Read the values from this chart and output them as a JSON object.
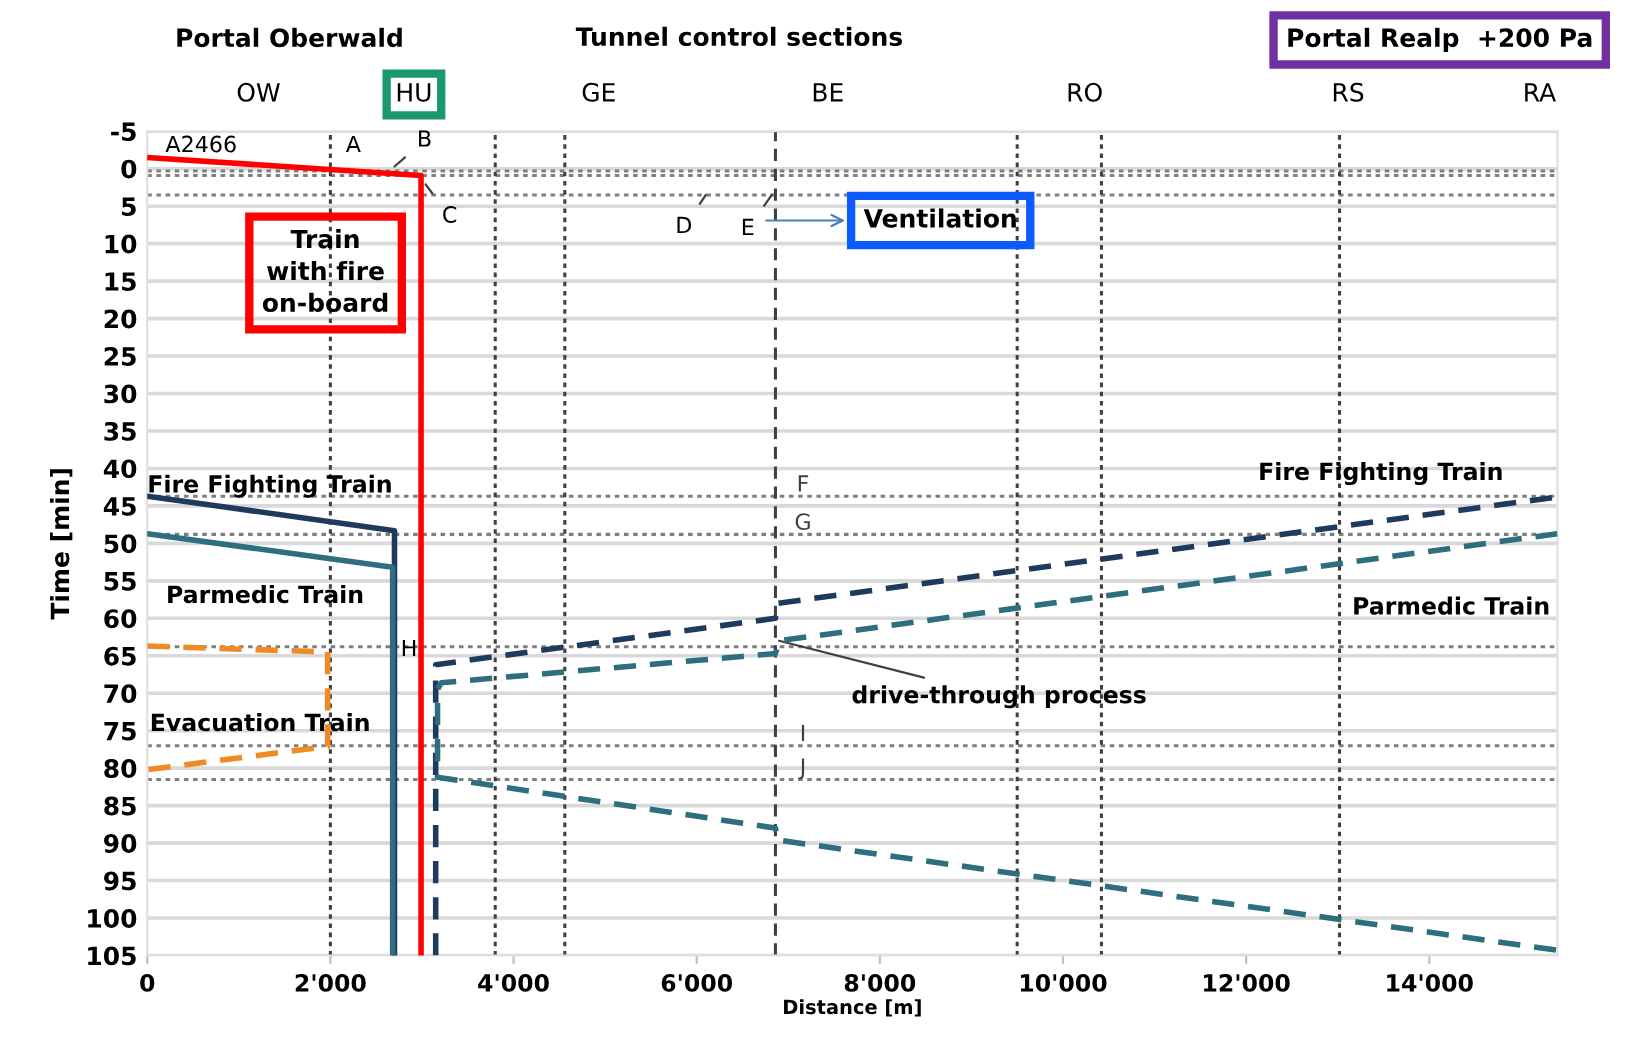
{
  "chart_data": {
    "type": "line",
    "title": "Tunnel control sections",
    "xlabel": "Distance [m]",
    "ylabel": "Time [min]",
    "xlim": [
      0,
      15400
    ],
    "ylim": [
      105,
      -5
    ],
    "xticks": [
      0,
      {
        "value": 2000,
        "label": "2'000"
      },
      {
        "value": 4000,
        "label": "4'000"
      },
      {
        "value": 6000,
        "label": "6'000"
      },
      {
        "value": 8000,
        "label": "8'000"
      },
      {
        "value": 10000,
        "label": "10'000"
      },
      {
        "value": 12000,
        "label": "12'000"
      },
      {
        "value": 14000,
        "label": "14'000"
      }
    ],
    "yticks": [
      -5,
      0,
      5,
      10,
      15,
      20,
      25,
      30,
      35,
      40,
      45,
      50,
      55,
      60,
      65,
      70,
      75,
      80,
      85,
      90,
      95,
      100,
      105
    ],
    "grid": "y",
    "series": [
      {
        "color": "#ff0000",
        "line_style": "solid",
        "x": [
          0,
          2990,
          2990
        ],
        "values": [
          -1.5,
          0.9,
          105
        ]
      },
      {
        "color": "#1f3a5f",
        "line_style": "solid",
        "x": [
          0,
          2700,
          2700
        ],
        "values": [
          43.7,
          48.3,
          105
        ]
      },
      {
        "color": "#2e6e7e",
        "line_style": "solid",
        "x": [
          0,
          2680,
          2680
        ],
        "values": [
          48.7,
          53.2,
          105
        ]
      },
      {
        "color": "#1f3a5f",
        "line_style": "dashed",
        "x": [
          3150,
          3150,
          6860,
          6880,
          15400
        ],
        "values": [
          105,
          66.2,
          60.0,
          58.0,
          43.8
        ]
      },
      {
        "color": "#2e6e7e",
        "line_style": "dashed",
        "x": [
          15400,
          6900,
          6860,
          3210,
          3170,
          3170,
          6860,
          6890,
          15400
        ],
        "values": [
          48.7,
          63.0,
          64.7,
          68.6,
          69.5,
          81.2,
          88.0,
          89.6,
          104.3
        ]
      },
      {
        "color": "#f08a24",
        "line_style": "dashed",
        "x": [
          0,
          1970,
          1970,
          0
        ],
        "values": [
          63.7,
          64.5,
          77.1,
          80.2
        ]
      }
    ],
    "ref_lines": [
      {
        "axis": "y",
        "value": 0.3,
        "color": "#7f7f7f",
        "line_style": "dotted"
      },
      {
        "axis": "y",
        "value": 0.9,
        "color": "#7f7f7f",
        "line_style": "dotted"
      },
      {
        "axis": "y",
        "value": 3.5,
        "color": "#7f7f7f",
        "line_style": "dotted"
      },
      {
        "axis": "y",
        "value": 43.7,
        "label": "F",
        "color": "#7f7f7f",
        "line_style": "dotted"
      },
      {
        "axis": "y",
        "value": 48.8,
        "label": "G",
        "color": "#7f7f7f",
        "line_style": "dotted"
      },
      {
        "axis": "y",
        "value": 63.8,
        "color": "#7f7f7f",
        "line_style": "dotted"
      },
      {
        "axis": "y",
        "value": 77.0,
        "label": "I",
        "color": "#7f7f7f",
        "line_style": "dotted"
      },
      {
        "axis": "y",
        "value": 81.5,
        "label": "J",
        "color": "#7f7f7f",
        "line_style": "dotted"
      },
      {
        "axis": "x",
        "value": 2000,
        "color": "#404040",
        "line_style": "dotted"
      },
      {
        "axis": "x",
        "value": 3800,
        "color": "#404040",
        "line_style": "dotted"
      },
      {
        "axis": "x",
        "value": 4560,
        "color": "#404040",
        "line_style": "dotted"
      },
      {
        "axis": "x",
        "value": 6860,
        "color": "#404040",
        "line_style": "dashed"
      },
      {
        "axis": "x",
        "value": 9500,
        "color": "#404040",
        "line_style": "dotted"
      },
      {
        "axis": "x",
        "value": 10420,
        "color": "#404040",
        "line_style": "dotted"
      },
      {
        "axis": "x",
        "value": 13020,
        "color": "#404040",
        "line_style": "dotted"
      }
    ],
    "annotations": [
      "Portal Oberwald",
      "Portal Realp  +200 Pa",
      "Train\nwith fire\non-board",
      "Ventilation",
      "OW",
      "HU",
      "GE",
      "BE",
      "RO",
      "RS",
      "RA",
      "A2466",
      "A",
      "Fire Fighting Train",
      "Fire Fighting Train",
      "Parmedic Train",
      "Parmedic Train",
      "Evacuation Train",
      "H",
      {
        "text": "B",
        "x": 2700,
        "y": -0.3
      },
      {
        "text": "C",
        "x": 3040,
        "y": 2.1
      },
      {
        "text": "D",
        "x": 6100,
        "y": 3.5
      },
      {
        "text": "E",
        "x": 6820,
        "y": 3.5
      },
      {
        "text": "drive-through process",
        "x": 6900,
        "y": 63.0
      }
    ]
  }
}
